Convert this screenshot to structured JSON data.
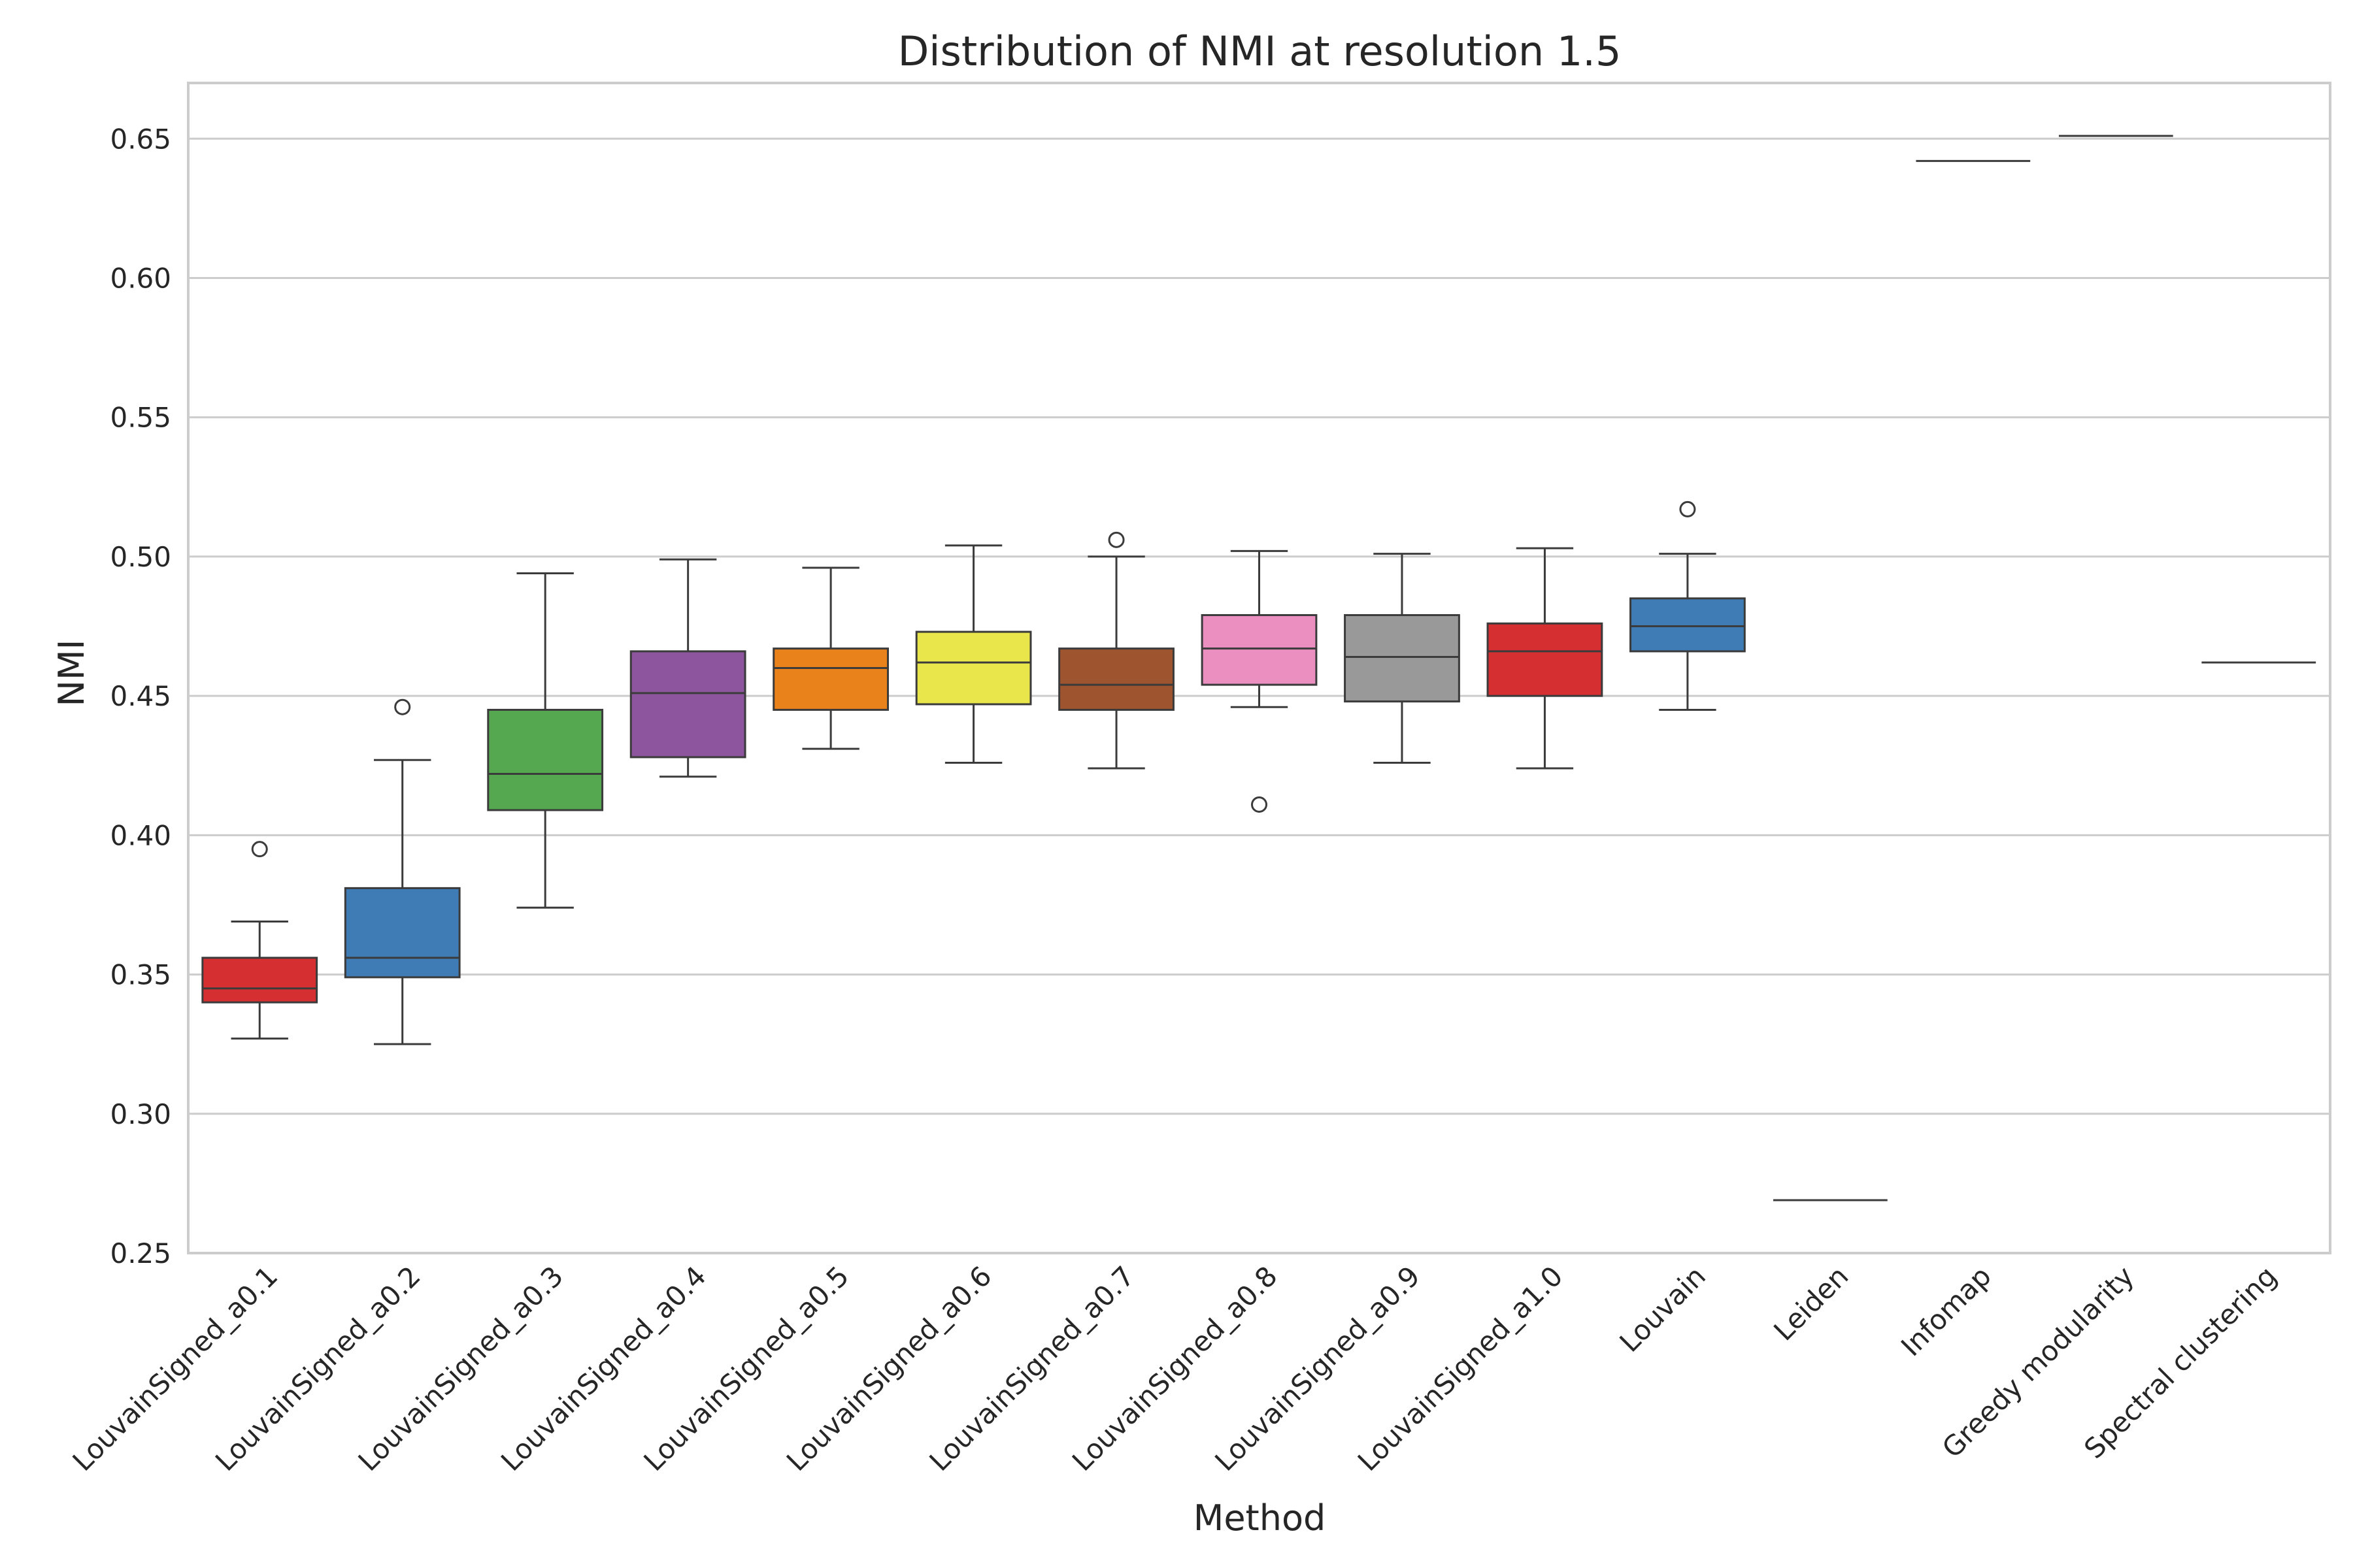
{
  "chart_data": {
    "type": "box",
    "title": "Distribution of NMI at resolution 1.5",
    "xlabel": "Method",
    "ylabel": "NMI",
    "ylim": [
      0.25,
      0.67
    ],
    "yticks": [
      "0.25",
      "0.30",
      "0.35",
      "0.40",
      "0.45",
      "0.50",
      "0.55",
      "0.60",
      "0.65"
    ],
    "grid": "horizontal",
    "legend": "none",
    "categories": [
      "LouvainSigned_a0.1",
      "LouvainSigned_a0.2",
      "LouvainSigned_a0.3",
      "LouvainSigned_a0.4",
      "LouvainSigned_a0.5",
      "LouvainSigned_a0.6",
      "LouvainSigned_a0.7",
      "LouvainSigned_a0.8",
      "LouvainSigned_a0.9",
      "LouvainSigned_a1.0",
      "Louvain",
      "Leiden",
      "Infomap",
      "Greedy modularity",
      "Spectral clustering"
    ],
    "boxes": [
      {
        "whisker_low": 0.327,
        "q1": 0.34,
        "median": 0.345,
        "q3": 0.356,
        "whisker_high": 0.369,
        "outliers": [
          0.395
        ],
        "color": "#d62f32"
      },
      {
        "whisker_low": 0.325,
        "q1": 0.349,
        "median": 0.356,
        "q3": 0.381,
        "whisker_high": 0.427,
        "outliers": [
          0.446
        ],
        "color": "#3f7cb5"
      },
      {
        "whisker_low": 0.374,
        "q1": 0.409,
        "median": 0.422,
        "q3": 0.445,
        "whisker_high": 0.494,
        "outliers": [],
        "color": "#55a84f"
      },
      {
        "whisker_low": 0.421,
        "q1": 0.428,
        "median": 0.451,
        "q3": 0.466,
        "whisker_high": 0.499,
        "outliers": [],
        "color": "#8e559f"
      },
      {
        "whisker_low": 0.431,
        "q1": 0.445,
        "median": 0.46,
        "q3": 0.467,
        "whisker_high": 0.496,
        "outliers": [],
        "color": "#e9821b"
      },
      {
        "whisker_low": 0.426,
        "q1": 0.447,
        "median": 0.462,
        "q3": 0.473,
        "whisker_high": 0.504,
        "outliers": [],
        "color": "#e8e64a"
      },
      {
        "whisker_low": 0.424,
        "q1": 0.445,
        "median": 0.454,
        "q3": 0.467,
        "whisker_high": 0.5,
        "outliers": [
          0.506
        ],
        "color": "#9f5430"
      },
      {
        "whisker_low": 0.446,
        "q1": 0.454,
        "median": 0.467,
        "q3": 0.479,
        "whisker_high": 0.502,
        "outliers": [
          0.411
        ],
        "color": "#eb8fc0"
      },
      {
        "whisker_low": 0.426,
        "q1": 0.448,
        "median": 0.464,
        "q3": 0.479,
        "whisker_high": 0.501,
        "outliers": [],
        "color": "#999999"
      },
      {
        "whisker_low": 0.424,
        "q1": 0.45,
        "median": 0.466,
        "q3": 0.476,
        "whisker_high": 0.503,
        "outliers": [],
        "color": "#d62f32"
      },
      {
        "whisker_low": 0.445,
        "q1": 0.466,
        "median": 0.475,
        "q3": 0.485,
        "whisker_high": 0.501,
        "outliers": [
          0.517
        ],
        "color": "#3f7cb5"
      },
      {
        "whisker_low": 0.269,
        "q1": 0.269,
        "median": 0.269,
        "q3": 0.269,
        "whisker_high": 0.269,
        "outliers": [],
        "color": "#55a84f"
      },
      {
        "whisker_low": 0.642,
        "q1": 0.642,
        "median": 0.642,
        "q3": 0.642,
        "whisker_high": 0.642,
        "outliers": [],
        "color": "#8e559f"
      },
      {
        "whisker_low": 0.651,
        "q1": 0.651,
        "median": 0.651,
        "q3": 0.651,
        "whisker_high": 0.651,
        "outliers": [],
        "color": "#e9821b"
      },
      {
        "whisker_low": 0.462,
        "q1": 0.462,
        "median": 0.462,
        "q3": 0.462,
        "whisker_high": 0.462,
        "outliers": [],
        "color": "#e8e64a"
      }
    ]
  }
}
